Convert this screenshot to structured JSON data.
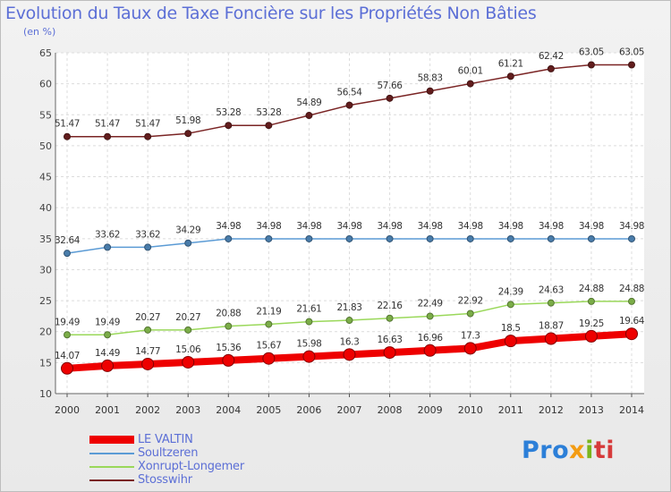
{
  "header": {
    "title": "Evolution du Taux de Taxe Foncière sur les Propriétés Non Bâties",
    "unit": "(en %)"
  },
  "logo": {
    "p1": "Pro",
    "p2": "x",
    "p3": "i",
    "p4": "ti"
  },
  "chart_data": {
    "type": "line",
    "title": "Evolution du Taux de Taxe Foncière sur les Propriétés Non Bâties",
    "ylabel": "(en %)",
    "xlabel": "",
    "ylim": [
      10,
      65
    ],
    "yticks": [
      10,
      15,
      20,
      25,
      30,
      35,
      40,
      45,
      50,
      55,
      60,
      65
    ],
    "grid": true,
    "legend_position": "bottom-left",
    "categories": [
      "2000",
      "2001",
      "2002",
      "2003",
      "2004",
      "2005",
      "2006",
      "2007",
      "2008",
      "2009",
      "2010",
      "2011",
      "2012",
      "2013",
      "2014"
    ],
    "series": [
      {
        "name": "LE VALTIN",
        "color": "#ee0000",
        "emphasis": true,
        "values": [
          14.07,
          14.49,
          14.77,
          15.06,
          15.36,
          15.67,
          15.98,
          16.3,
          16.63,
          16.96,
          17.3,
          18.5,
          18.87,
          19.25,
          19.64
        ],
        "labels": [
          "14.07",
          "14.49",
          "14.77",
          "15.06",
          "15.36",
          "15.67",
          "15.98",
          "16.3",
          "16.63",
          "16.96",
          "17.3",
          "18.5",
          "18.87",
          "19.25",
          "19.64"
        ]
      },
      {
        "name": "Soultzeren",
        "color": "#5b9bd5",
        "emphasis": false,
        "values": [
          32.64,
          33.62,
          33.62,
          34.29,
          34.98,
          34.98,
          34.98,
          34.98,
          34.98,
          34.98,
          34.98,
          34.98,
          34.98,
          34.98,
          34.98
        ],
        "labels": [
          "32.64",
          "33.62",
          "33.62",
          "34.29",
          "34.98",
          "34.98",
          "34.98",
          "34.98",
          "34.98",
          "34.98",
          "34.98",
          "34.98",
          "34.98",
          "34.98",
          "34.98"
        ]
      },
      {
        "name": "Xonrupt-Longemer",
        "color": "#9ad85a",
        "emphasis": false,
        "values": [
          19.49,
          19.49,
          20.27,
          20.27,
          20.88,
          21.19,
          21.61,
          21.83,
          22.16,
          22.49,
          22.92,
          24.39,
          24.63,
          24.88,
          24.88
        ],
        "labels": [
          "19.49",
          "19.49",
          "20.27",
          "20.27",
          "20.88",
          "21.19",
          "21.61",
          "21.83",
          "22.16",
          "22.49",
          "22.92",
          "24.39",
          "24.63",
          "24.88",
          "24.88"
        ]
      },
      {
        "name": "Stosswihr",
        "color": "#7a2424",
        "emphasis": false,
        "values": [
          51.47,
          51.47,
          51.47,
          51.98,
          53.28,
          53.28,
          54.89,
          56.54,
          57.66,
          58.83,
          60.01,
          61.21,
          62.42,
          63.05,
          63.05
        ],
        "labels": [
          "51.47",
          "51.47",
          "51.47",
          "51.98",
          "53.28",
          "53.28",
          "54.89",
          "56.54",
          "57.66",
          "58.83",
          "60.01",
          "61.21",
          "62.42",
          "63.05",
          "63.05"
        ]
      }
    ]
  }
}
